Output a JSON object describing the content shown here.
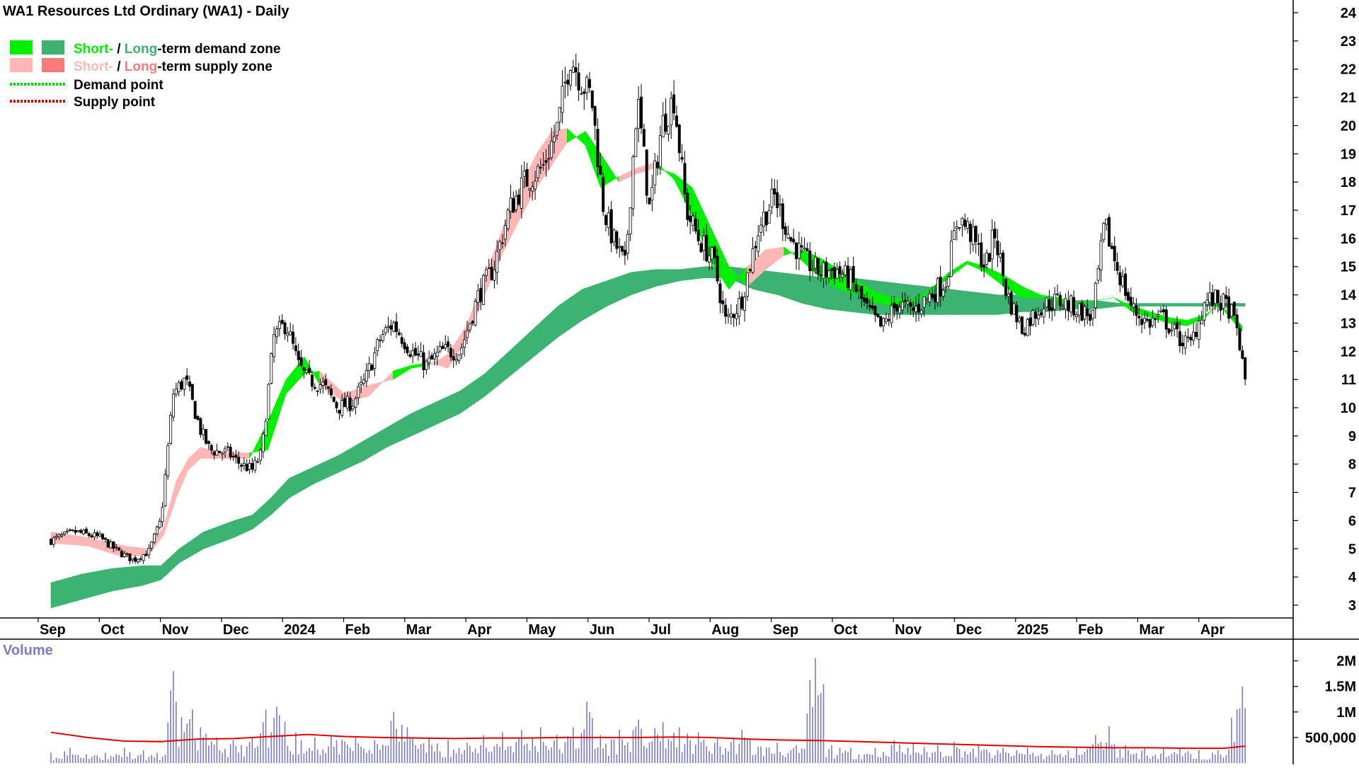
{
  "chart_data": {
    "type": "candlestick",
    "title": "WA1 Resources Ltd Ordinary (WA1) - Daily",
    "legend": {
      "placement": "top-left",
      "demand_zone": {
        "short": "Short-",
        "sep": " / ",
        "long": "Long",
        "rest": "-term demand zone"
      },
      "supply_zone": {
        "short": "Short-",
        "sep": " / ",
        "long": "Long",
        "rest": "-term supply zone"
      },
      "demand_point": "Demand point",
      "supply_point": "Supply point"
    },
    "colors": {
      "short_demand": "#00f000",
      "long_demand": "#3cb371",
      "short_supply": "#ffb6b6",
      "long_supply": "#ff7f2a",
      "legend_long_supply": "#f77b7b",
      "demand_point": "#00e000",
      "supply_point": "#e00000",
      "volume_bar": "#7a7acb",
      "volume_average": "#e00000"
    },
    "y_ticks": [
      "24",
      "23",
      "22",
      "21",
      "20",
      "19",
      "18",
      "17",
      "16",
      "15",
      "14",
      "13",
      "12",
      "11",
      "10",
      "9",
      "8",
      "7",
      "6",
      "5",
      "4",
      "3"
    ],
    "ylim": [
      2.6,
      24.3
    ],
    "x_axis": {
      "labels": [
        "Sep",
        "Oct",
        "Nov",
        "Dec",
        "2024",
        "Feb",
        "Mar",
        "Apr",
        "May",
        "Jun",
        "Jul",
        "Aug",
        "Sep",
        "Oct",
        "Nov",
        "Dec",
        "2025",
        "Feb",
        "Mar",
        "Apr"
      ],
      "label_month_index": [
        0,
        1,
        2,
        3,
        4,
        5,
        6,
        7,
        8,
        9,
        10,
        11,
        12,
        13,
        14,
        15,
        16,
        17,
        18,
        19
      ]
    },
    "price_path": [
      [
        0,
        5.3
      ],
      [
        0.4,
        5.6
      ],
      [
        0.8,
        5.4
      ],
      [
        1.1,
        4.9
      ],
      [
        1.35,
        4.6
      ],
      [
        1.6,
        4.9
      ],
      [
        1.8,
        6.0
      ],
      [
        2.0,
        10.5
      ],
      [
        2.2,
        11.0
      ],
      [
        2.45,
        9.2
      ],
      [
        2.6,
        8.5
      ],
      [
        2.9,
        8.4
      ],
      [
        3.1,
        8.0
      ],
      [
        3.3,
        7.8
      ],
      [
        3.45,
        8.4
      ],
      [
        3.65,
        12.5
      ],
      [
        3.85,
        13.0
      ],
      [
        4.05,
        11.5
      ],
      [
        4.2,
        11.0
      ],
      [
        4.45,
        10.8
      ],
      [
        4.7,
        10.0
      ],
      [
        4.95,
        10.2
      ],
      [
        5.15,
        11.0
      ],
      [
        5.4,
        12.5
      ],
      [
        5.6,
        13.0
      ],
      [
        5.9,
        12.0
      ],
      [
        6.15,
        11.5
      ],
      [
        6.4,
        12.0
      ],
      [
        6.7,
        12.0
      ],
      [
        7.0,
        14.0
      ],
      [
        7.25,
        15.0
      ],
      [
        7.5,
        17.0
      ],
      [
        7.75,
        18.0
      ],
      [
        8.05,
        18.5
      ],
      [
        8.3,
        20.0
      ],
      [
        8.5,
        22.5
      ],
      [
        8.7,
        21.5
      ],
      [
        8.85,
        21.0
      ],
      [
        9.05,
        17.0
      ],
      [
        9.2,
        16.0
      ],
      [
        9.4,
        15.0
      ],
      [
        9.6,
        21.0
      ],
      [
        9.8,
        17.0
      ],
      [
        10.0,
        20.0
      ],
      [
        10.2,
        21.0
      ],
      [
        10.4,
        17.0
      ],
      [
        10.6,
        16.0
      ],
      [
        10.85,
        15.2
      ],
      [
        11.05,
        13.0
      ],
      [
        11.3,
        13.8
      ],
      [
        11.6,
        16.5
      ],
      [
        11.85,
        17.5
      ],
      [
        12.1,
        16.0
      ],
      [
        12.35,
        15.2
      ],
      [
        12.6,
        14.8
      ],
      [
        12.85,
        14.9
      ],
      [
        13.1,
        14.5
      ],
      [
        13.35,
        13.5
      ],
      [
        13.6,
        12.8
      ],
      [
        13.85,
        13.7
      ],
      [
        14.1,
        13.4
      ],
      [
        14.4,
        14.0
      ],
      [
        14.65,
        14.5
      ],
      [
        14.85,
        16.8
      ],
      [
        15.05,
        16.2
      ],
      [
        15.3,
        15.0
      ],
      [
        15.45,
        16.2
      ],
      [
        15.65,
        14.0
      ],
      [
        15.9,
        12.8
      ],
      [
        16.2,
        13.6
      ],
      [
        16.5,
        13.8
      ],
      [
        16.8,
        13.5
      ],
      [
        17.05,
        13.2
      ],
      [
        17.25,
        16.5
      ],
      [
        17.45,
        15.0
      ],
      [
        17.7,
        13.5
      ],
      [
        17.95,
        13.0
      ],
      [
        18.2,
        13.2
      ],
      [
        18.45,
        12.5
      ],
      [
        18.65,
        12.2
      ],
      [
        18.9,
        13.8
      ],
      [
        19.1,
        13.8
      ],
      [
        19.3,
        13.5
      ],
      [
        19.45,
        12.5
      ],
      [
        19.5,
        11.5
      ],
      [
        19.55,
        11.0
      ]
    ],
    "short_term_band": [
      [
        0,
        5.2,
        5.6
      ],
      [
        0.6,
        5.1,
        5.4
      ],
      [
        1.2,
        4.7,
        5.1
      ],
      [
        1.6,
        4.8,
        5.0
      ],
      [
        1.85,
        5.5,
        5.8
      ],
      [
        2.05,
        6.8,
        7.4
      ],
      [
        2.25,
        7.8,
        8.2
      ],
      [
        2.45,
        8.2,
        8.6
      ],
      [
        2.8,
        8.2,
        8.4
      ],
      [
        3.25,
        8.2,
        8.4
      ],
      [
        3.55,
        9.5,
        8.5
      ],
      [
        3.85,
        11.0,
        10.5
      ],
      [
        4.15,
        11.8,
        11.2
      ],
      [
        4.4,
        10.8,
        11.3
      ],
      [
        4.8,
        10.2,
        10.5
      ],
      [
        5.2,
        10.4,
        10.8
      ],
      [
        5.6,
        11.3,
        11.0
      ],
      [
        5.9,
        11.5,
        11.4
      ],
      [
        6.2,
        11.6,
        11.5
      ],
      [
        6.5,
        11.4,
        11.9
      ],
      [
        6.8,
        12.4,
        12.9
      ],
      [
        7.1,
        14.0,
        14.6
      ],
      [
        7.4,
        15.5,
        16.4
      ],
      [
        7.7,
        16.8,
        17.9
      ],
      [
        7.95,
        17.8,
        19.0
      ],
      [
        8.2,
        18.6,
        19.8
      ],
      [
        8.45,
        19.4,
        19.9
      ],
      [
        8.75,
        19.8,
        19.3
      ],
      [
        9.0,
        19.0,
        17.8
      ],
      [
        9.3,
        18.0,
        18.2
      ],
      [
        9.6,
        18.3,
        18.5
      ],
      [
        9.9,
        18.5,
        18.7
      ],
      [
        10.2,
        18.3,
        18.1
      ],
      [
        10.5,
        17.8,
        16.8
      ],
      [
        10.8,
        16.4,
        15.2
      ],
      [
        11.1,
        15.0,
        14.2
      ],
      [
        11.4,
        14.3,
        15.0
      ],
      [
        11.7,
        14.9,
        15.6
      ],
      [
        12.0,
        15.4,
        15.7
      ],
      [
        12.3,
        15.6,
        15.2
      ],
      [
        12.6,
        15.3,
        14.6
      ],
      [
        12.9,
        14.9,
        14.2
      ],
      [
        13.2,
        14.5,
        14.0
      ],
      [
        13.5,
        14.1,
        13.7
      ],
      [
        13.8,
        13.9,
        13.6
      ],
      [
        14.1,
        13.8,
        13.7
      ],
      [
        14.4,
        14.2,
        14.1
      ],
      [
        14.7,
        14.8,
        14.6
      ],
      [
        15.0,
        15.2,
        15.1
      ],
      [
        15.3,
        15.0,
        14.8
      ],
      [
        15.6,
        14.7,
        14.3
      ],
      [
        15.9,
        14.3,
        13.9
      ],
      [
        16.2,
        14.0,
        13.9
      ],
      [
        16.5,
        13.9,
        13.8
      ],
      [
        16.8,
        13.7,
        13.6
      ],
      [
        17.1,
        13.8,
        13.8
      ],
      [
        17.4,
        13.9,
        13.9
      ],
      [
        17.7,
        13.6,
        13.4
      ],
      [
        18.0,
        13.4,
        13.2
      ],
      [
        18.3,
        13.2,
        13.0
      ],
      [
        18.6,
        13.1,
        12.9
      ],
      [
        18.9,
        13.3,
        13.2
      ],
      [
        19.1,
        13.6,
        13.7
      ],
      [
        19.3,
        13.4,
        13.2
      ],
      [
        19.5,
        12.9,
        12.7
      ]
    ],
    "long_term_band": [
      [
        0,
        3.8,
        2.9
      ],
      [
        0.5,
        4.1,
        3.2
      ],
      [
        1.0,
        4.3,
        3.5
      ],
      [
        1.5,
        4.4,
        3.7
      ],
      [
        1.8,
        4.4,
        3.9
      ],
      [
        2.1,
        5.0,
        4.5
      ],
      [
        2.5,
        5.6,
        5.0
      ],
      [
        3.0,
        6.0,
        5.4
      ],
      [
        3.3,
        6.2,
        5.7
      ],
      [
        3.6,
        6.8,
        6.2
      ],
      [
        3.9,
        7.5,
        6.8
      ],
      [
        4.3,
        7.9,
        7.3
      ],
      [
        4.7,
        8.3,
        7.7
      ],
      [
        5.1,
        8.8,
        8.1
      ],
      [
        5.5,
        9.3,
        8.6
      ],
      [
        5.9,
        9.8,
        9.0
      ],
      [
        6.3,
        10.2,
        9.4
      ],
      [
        6.7,
        10.6,
        9.8
      ],
      [
        7.1,
        11.2,
        10.4
      ],
      [
        7.5,
        12.0,
        11.1
      ],
      [
        7.9,
        12.8,
        11.8
      ],
      [
        8.3,
        13.6,
        12.5
      ],
      [
        8.7,
        14.2,
        13.1
      ],
      [
        9.1,
        14.5,
        13.6
      ],
      [
        9.5,
        14.8,
        14.0
      ],
      [
        9.9,
        14.9,
        14.3
      ],
      [
        10.3,
        14.9,
        14.5
      ],
      [
        10.7,
        15.0,
        14.6
      ],
      [
        11.1,
        15.0,
        14.6
      ],
      [
        11.5,
        14.9,
        14.2
      ],
      [
        11.9,
        14.8,
        14.0
      ],
      [
        12.3,
        14.7,
        13.7
      ],
      [
        12.7,
        14.6,
        13.5
      ],
      [
        13.1,
        14.6,
        13.4
      ],
      [
        13.5,
        14.5,
        13.3
      ],
      [
        13.9,
        14.4,
        13.3
      ],
      [
        14.3,
        14.3,
        13.3
      ],
      [
        14.7,
        14.2,
        13.3
      ],
      [
        15.1,
        14.1,
        13.3
      ],
      [
        15.5,
        14.0,
        13.3
      ],
      [
        15.9,
        14.0,
        13.4
      ],
      [
        16.3,
        13.9,
        13.4
      ],
      [
        16.7,
        13.8,
        13.5
      ],
      [
        17.1,
        13.8,
        13.5
      ],
      [
        17.5,
        13.7,
        13.6
      ],
      [
        17.9,
        13.7,
        13.6
      ],
      [
        18.3,
        13.7,
        13.6
      ],
      [
        18.7,
        13.7,
        13.6
      ],
      [
        19.1,
        13.7,
        13.6
      ],
      [
        19.55,
        13.7,
        13.6
      ]
    ],
    "volume_panel": {
      "label": "Volume",
      "y_ticks": [
        "2M",
        "1.5M",
        "1M",
        "500,000"
      ],
      "ylim": [
        0,
        2300000
      ],
      "bars": [
        [
          0,
          200000
        ],
        [
          0.3,
          300000
        ],
        [
          0.6,
          250000
        ],
        [
          0.9,
          200000
        ],
        [
          1.2,
          300000
        ],
        [
          1.5,
          250000
        ],
        [
          1.75,
          200000
        ],
        [
          2.0,
          1800000
        ],
        [
          2.05,
          1200000
        ],
        [
          2.15,
          900000
        ],
        [
          2.3,
          1050000
        ],
        [
          2.45,
          700000
        ],
        [
          2.7,
          500000
        ],
        [
          3.0,
          450000
        ],
        [
          3.3,
          500000
        ],
        [
          3.5,
          1050000
        ],
        [
          3.6,
          600000
        ],
        [
          3.7,
          1100000
        ],
        [
          4.0,
          600000
        ],
        [
          4.3,
          500000
        ],
        [
          4.6,
          550000
        ],
        [
          5.0,
          500000
        ],
        [
          5.3,
          450000
        ],
        [
          5.6,
          1000000
        ],
        [
          5.9,
          900000
        ],
        [
          6.2,
          500000
        ],
        [
          6.5,
          450000
        ],
        [
          6.8,
          400000
        ],
        [
          7.1,
          550000
        ],
        [
          7.4,
          600000
        ],
        [
          7.7,
          650000
        ],
        [
          8.0,
          700000
        ],
        [
          8.3,
          550000
        ],
        [
          8.55,
          700000
        ],
        [
          8.75,
          1500000
        ],
        [
          9.0,
          550000
        ],
        [
          9.3,
          650000
        ],
        [
          9.6,
          850000
        ],
        [
          10.0,
          800000
        ],
        [
          10.3,
          700000
        ],
        [
          10.6,
          600000
        ],
        [
          10.9,
          500000
        ],
        [
          11.3,
          650000
        ],
        [
          11.6,
          450000
        ],
        [
          11.9,
          400000
        ],
        [
          12.2,
          350000
        ],
        [
          12.5,
          2050000
        ],
        [
          12.8,
          350000
        ],
        [
          13.1,
          300000
        ],
        [
          13.5,
          300000
        ],
        [
          13.8,
          450000
        ],
        [
          14.1,
          380000
        ],
        [
          14.5,
          350000
        ],
        [
          14.8,
          420000
        ],
        [
          15.2,
          350000
        ],
        [
          15.6,
          300000
        ],
        [
          16.0,
          300000
        ],
        [
          16.4,
          250000
        ],
        [
          16.8,
          300000
        ],
        [
          17.1,
          550000
        ],
        [
          17.3,
          900000
        ],
        [
          17.6,
          350000
        ],
        [
          17.9,
          300000
        ],
        [
          18.2,
          280000
        ],
        [
          18.5,
          280000
        ],
        [
          18.8,
          250000
        ],
        [
          19.1,
          250000
        ],
        [
          19.4,
          1050000
        ],
        [
          19.5,
          1500000
        ]
      ],
      "average_path": [
        [
          0,
          600000
        ],
        [
          0.6,
          500000
        ],
        [
          1.2,
          430000
        ],
        [
          1.8,
          420000
        ],
        [
          2.4,
          470000
        ],
        [
          3.0,
          480000
        ],
        [
          3.6,
          520000
        ],
        [
          4.2,
          560000
        ],
        [
          4.8,
          520000
        ],
        [
          5.4,
          500000
        ],
        [
          6.0,
          490000
        ],
        [
          6.6,
          480000
        ],
        [
          7.2,
          490000
        ],
        [
          7.8,
          490000
        ],
        [
          8.4,
          500000
        ],
        [
          9.0,
          500000
        ],
        [
          9.6,
          500000
        ],
        [
          10.2,
          510000
        ],
        [
          10.8,
          500000
        ],
        [
          11.4,
          470000
        ],
        [
          12.0,
          450000
        ],
        [
          12.6,
          440000
        ],
        [
          13.2,
          420000
        ],
        [
          13.8,
          400000
        ],
        [
          14.4,
          380000
        ],
        [
          15.0,
          360000
        ],
        [
          15.6,
          340000
        ],
        [
          16.2,
          320000
        ],
        [
          16.8,
          310000
        ],
        [
          17.4,
          300000
        ],
        [
          18.0,
          300000
        ],
        [
          18.6,
          290000
        ],
        [
          19.2,
          290000
        ],
        [
          19.55,
          330000
        ]
      ]
    }
  }
}
